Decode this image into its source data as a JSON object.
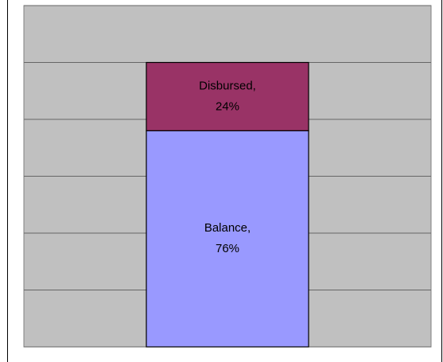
{
  "chart_data": {
    "type": "stacked_bar",
    "categories": [
      null
    ],
    "series": [
      {
        "name": "Balance,",
        "color": "#9999ff",
        "values": [
          76
        ],
        "value_labels": [
          "76%"
        ]
      },
      {
        "name": "Disbursed,",
        "color": "#993366",
        "values": [
          24
        ],
        "value_labels": [
          "24%"
        ]
      }
    ],
    "ylim": [
      0,
      120
    ],
    "yticks": [
      0,
      20,
      40,
      60,
      80,
      100,
      120
    ],
    "grid": true,
    "plot_background": "#c0c0c0"
  }
}
